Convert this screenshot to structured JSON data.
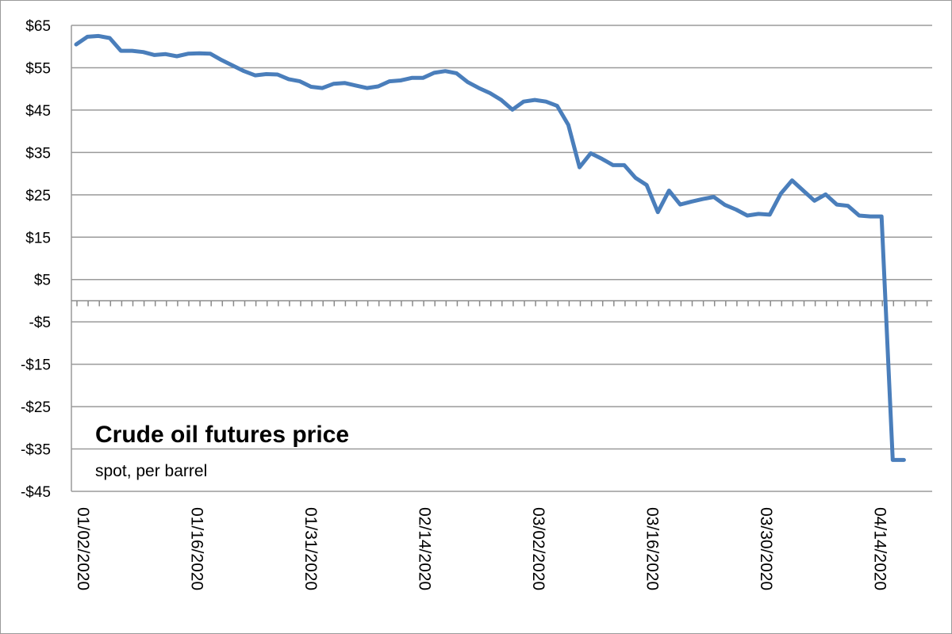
{
  "chart_data": {
    "type": "line",
    "title": "Crude oil futures price",
    "subtitle": "spot, per barrel",
    "xlabel": "",
    "ylabel": "",
    "ylim": [
      -45,
      65
    ],
    "y_ticks": [
      65,
      55,
      45,
      35,
      25,
      15,
      5,
      -5,
      -15,
      -25,
      -35,
      -45
    ],
    "y_tick_labels": [
      "$65",
      "$55",
      "$45",
      "$35",
      "$25",
      "$15",
      "$5",
      "-$5",
      "-$15",
      "-$25",
      "-$35",
      "-$45"
    ],
    "x_tick_labels": [
      "01/02/2020",
      "01/16/2020",
      "01/31/2020",
      "02/14/2020",
      "03/02/2020",
      "03/16/2020",
      "03/30/2020",
      "04/14/2020"
    ],
    "grid": true,
    "line_color": "#4a7ebb",
    "series": [
      {
        "values": [
          60.5,
          62.3,
          62.5,
          62.0,
          59.0,
          59.0,
          58.7,
          58.0,
          58.2,
          57.7,
          58.3,
          58.4,
          58.3,
          56.8,
          55.5,
          54.2,
          53.2,
          53.5,
          53.4,
          52.3,
          51.8,
          50.5,
          50.2,
          51.2,
          51.4,
          50.8,
          50.2,
          50.6,
          51.8,
          52.0,
          52.6,
          52.6,
          53.8,
          54.2,
          53.7,
          51.6,
          50.2,
          49.0,
          47.4,
          45.1,
          47.0,
          47.4,
          47.0,
          46.0,
          41.5,
          31.5,
          34.8,
          33.5,
          32.0,
          32.0,
          29.0,
          27.3,
          20.9,
          26.0,
          22.7,
          23.4,
          24.0,
          24.5,
          22.6,
          21.5,
          20.1,
          20.5,
          20.3,
          25.3,
          28.4,
          26.0,
          23.6,
          25.1,
          22.7,
          22.4,
          20.1,
          19.9,
          19.9,
          -37.6,
          -37.6
        ]
      }
    ]
  }
}
